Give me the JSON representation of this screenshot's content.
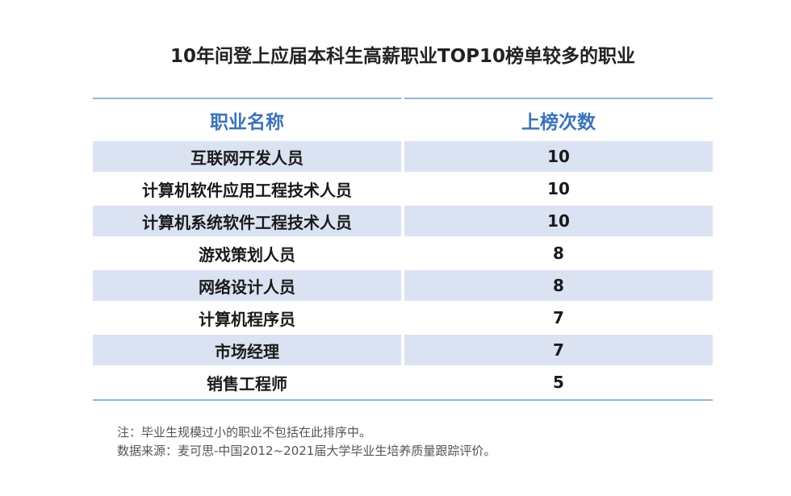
{
  "title": "10年间登上应届本科生高薪职业TOP10榜单较多的职业",
  "chart_data": {
    "type": "table",
    "columns": [
      "职业名称",
      "上榜次数"
    ],
    "rows": [
      {
        "name": "互联网开发人员",
        "count": "10"
      },
      {
        "name": "计算机软件应用工程技术人员",
        "count": "10"
      },
      {
        "name": "计算机系统软件工程技术人员",
        "count": "10"
      },
      {
        "name": "游戏策划人员",
        "count": "8"
      },
      {
        "name": "网络设计人员",
        "count": "8"
      },
      {
        "name": "计算机程序员",
        "count": "7"
      },
      {
        "name": "市场经理",
        "count": "7"
      },
      {
        "name": "销售工程师",
        "count": "5"
      }
    ]
  },
  "notes": [
    "注：毕业生规模过小的职业不包括在此排序中。",
    "数据来源：麦可思-中国2012~2021届大学毕业生培养质量跟踪评价。"
  ],
  "colors": {
    "header_text": "#3a73b9",
    "row_shade": "#dbe3f3",
    "rule": "#8fb5d8"
  }
}
